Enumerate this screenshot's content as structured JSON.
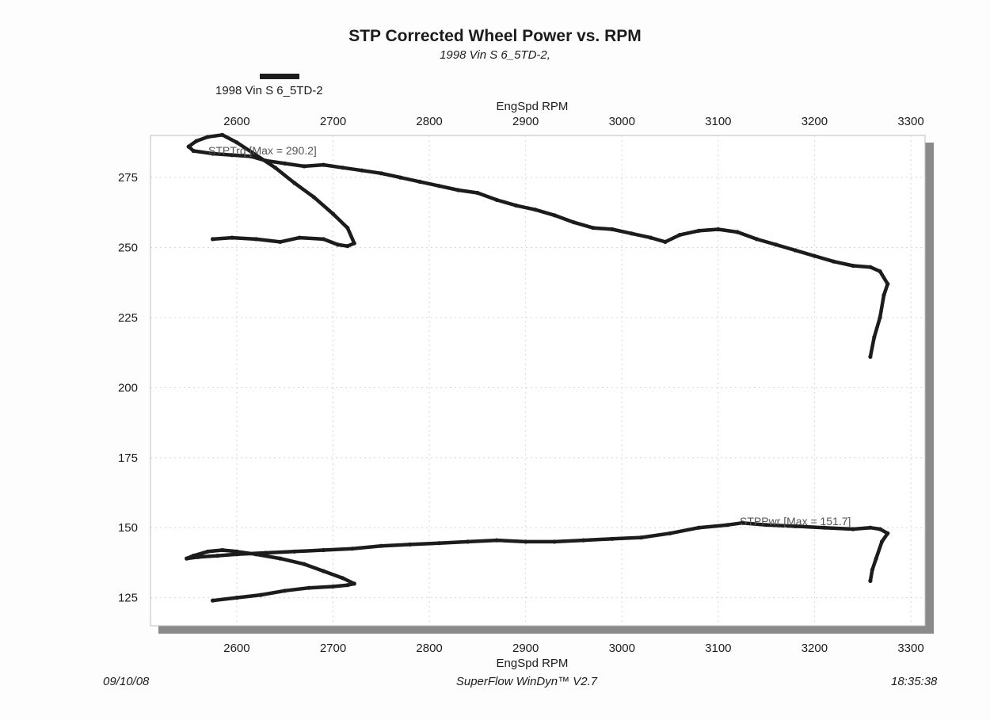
{
  "header": {
    "title": "STP Corrected Wheel Power vs. RPM",
    "subtitle": "1998 Vin S 6_5TD-2,"
  },
  "legend": {
    "label": "1998 Vin S 6_5TD-2",
    "color": "#1c1c1c"
  },
  "footer": {
    "date": "09/10/08",
    "software": "SuperFlow WinDyn™ V2.7",
    "time": "18:35:38"
  },
  "chart_data": {
    "type": "line",
    "title": "STP Corrected Wheel Power vs. RPM",
    "subtitle": "1998 Vin S 6_5TD-2,",
    "xlabel": "EngSpd  RPM",
    "ylabel": "",
    "xlim": [
      2540,
      3300
    ],
    "ylim": [
      115,
      290
    ],
    "x_ticks": [
      "2600",
      "2700",
      "2800",
      "2900",
      "3000",
      "3100",
      "3200",
      "3300"
    ],
    "y_ticks": [
      "125",
      "150",
      "175",
      "200",
      "225",
      "250",
      "275"
    ],
    "grid": true,
    "legend_position": "top-left",
    "series": [
      {
        "name": "STPTrq",
        "annotation": "STPTrq [Max = 290.2]",
        "color": "#1c1c1c",
        "points": [
          [
            2575,
            253
          ],
          [
            2595,
            253.5
          ],
          [
            2620,
            253
          ],
          [
            2645,
            252
          ],
          [
            2665,
            253.5
          ],
          [
            2690,
            253
          ],
          [
            2705,
            251
          ],
          [
            2715,
            250.5
          ],
          [
            2722,
            251.5
          ],
          [
            2715,
            257
          ],
          [
            2700,
            262
          ],
          [
            2680,
            268
          ],
          [
            2660,
            273
          ],
          [
            2640,
            278.5
          ],
          [
            2620,
            283
          ],
          [
            2600,
            287.5
          ],
          [
            2585,
            290.2
          ],
          [
            2570,
            289.5
          ],
          [
            2558,
            288
          ],
          [
            2550,
            286
          ],
          [
            2555,
            284.5
          ],
          [
            2575,
            283.5
          ],
          [
            2595,
            283
          ],
          [
            2615,
            282.5
          ],
          [
            2630,
            281
          ],
          [
            2650,
            280
          ],
          [
            2670,
            279
          ],
          [
            2690,
            279.5
          ],
          [
            2710,
            278.5
          ],
          [
            2730,
            277.5
          ],
          [
            2750,
            276.5
          ],
          [
            2770,
            275
          ],
          [
            2790,
            273.5
          ],
          [
            2810,
            272
          ],
          [
            2830,
            270.5
          ],
          [
            2850,
            269.5
          ],
          [
            2870,
            267
          ],
          [
            2890,
            265
          ],
          [
            2910,
            263.5
          ],
          [
            2930,
            261.5
          ],
          [
            2950,
            259
          ],
          [
            2970,
            257
          ],
          [
            2990,
            256.5
          ],
          [
            3010,
            255
          ],
          [
            3030,
            253.5
          ],
          [
            3045,
            252
          ],
          [
            3060,
            254.5
          ],
          [
            3080,
            256
          ],
          [
            3100,
            256.5
          ],
          [
            3120,
            255.5
          ],
          [
            3140,
            253
          ],
          [
            3160,
            251
          ],
          [
            3180,
            249
          ],
          [
            3200,
            247
          ],
          [
            3220,
            245
          ],
          [
            3240,
            243.5
          ],
          [
            3258,
            243
          ],
          [
            3268,
            241.5
          ],
          [
            3276,
            237
          ],
          [
            3272,
            233
          ],
          [
            3268,
            225
          ],
          [
            3262,
            218
          ],
          [
            3258,
            211
          ]
        ]
      },
      {
        "name": "STPPwr",
        "annotation": "STPPwr [Max = 151.7]",
        "color": "#1c1c1c",
        "points": [
          [
            2575,
            124
          ],
          [
            2600,
            125
          ],
          [
            2625,
            126
          ],
          [
            2650,
            127.5
          ],
          [
            2675,
            128.5
          ],
          [
            2700,
            129
          ],
          [
            2715,
            129.5
          ],
          [
            2722,
            130
          ],
          [
            2710,
            132
          ],
          [
            2690,
            134.5
          ],
          [
            2670,
            137
          ],
          [
            2645,
            139
          ],
          [
            2620,
            140.5
          ],
          [
            2600,
            141.5
          ],
          [
            2585,
            142
          ],
          [
            2570,
            141.5
          ],
          [
            2555,
            140
          ],
          [
            2548,
            139
          ],
          [
            2560,
            139.5
          ],
          [
            2580,
            140
          ],
          [
            2600,
            140.5
          ],
          [
            2630,
            141
          ],
          [
            2660,
            141.5
          ],
          [
            2690,
            142
          ],
          [
            2720,
            142.5
          ],
          [
            2750,
            143.5
          ],
          [
            2780,
            144
          ],
          [
            2810,
            144.5
          ],
          [
            2840,
            145
          ],
          [
            2870,
            145.5
          ],
          [
            2900,
            145
          ],
          [
            2930,
            145
          ],
          [
            2960,
            145.5
          ],
          [
            2990,
            146
          ],
          [
            3020,
            146.5
          ],
          [
            3050,
            148
          ],
          [
            3080,
            150
          ],
          [
            3110,
            151
          ],
          [
            3125,
            151.7
          ],
          [
            3150,
            151
          ],
          [
            3180,
            150.5
          ],
          [
            3210,
            150
          ],
          [
            3240,
            149.5
          ],
          [
            3258,
            150
          ],
          [
            3268,
            149.5
          ],
          [
            3276,
            148
          ],
          [
            3270,
            145
          ],
          [
            3264,
            139
          ],
          [
            3260,
            135
          ],
          [
            3258,
            131
          ]
        ]
      }
    ]
  }
}
